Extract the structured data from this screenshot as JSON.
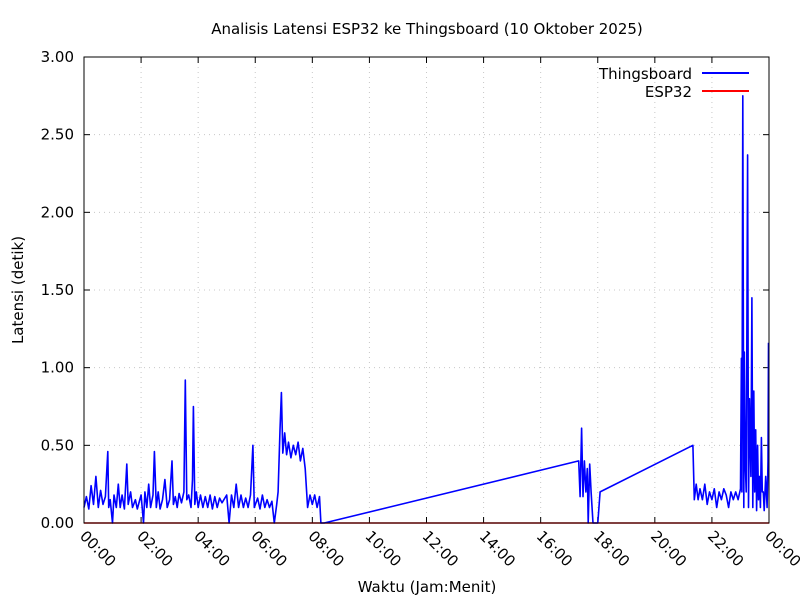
{
  "chart_data": {
    "type": "line",
    "title": "Analisis Latensi ESP32 ke Thingsboard (10 Oktober 2025)",
    "xlabel": "Waktu (Jam:Menit)",
    "ylabel": "Latensi (detik)",
    "xlim": [
      "00:00",
      "24:00"
    ],
    "ylim": [
      0,
      3
    ],
    "x_ticks": [
      "00:00",
      "02:00",
      "04:00",
      "06:00",
      "08:00",
      "10:00",
      "12:00",
      "14:00",
      "16:00",
      "18:00",
      "20:00",
      "22:00",
      "00:00"
    ],
    "y_ticks": [
      "0.00",
      "0.50",
      "1.00",
      "1.50",
      "2.00",
      "2.50",
      "3.00"
    ],
    "grid": true,
    "legend_position": "top-right",
    "series": [
      {
        "name": "Thingsboard",
        "color": "#0000ff",
        "points": [
          [
            "00:00",
            0.1
          ],
          [
            "00:05",
            0.17
          ],
          [
            "00:10",
            0.09
          ],
          [
            "00:15",
            0.24
          ],
          [
            "00:20",
            0.12
          ],
          [
            "00:25",
            0.3
          ],
          [
            "00:30",
            0.1
          ],
          [
            "00:35",
            0.21
          ],
          [
            "00:40",
            0.12
          ],
          [
            "00:45",
            0.17
          ],
          [
            "00:50",
            0.46
          ],
          [
            "00:52",
            0.1
          ],
          [
            "00:55",
            0.15
          ],
          [
            "01:00",
            0.0
          ],
          [
            "01:03",
            0.18
          ],
          [
            "01:08",
            0.1
          ],
          [
            "01:12",
            0.25
          ],
          [
            "01:16",
            0.1
          ],
          [
            "01:20",
            0.18
          ],
          [
            "01:25",
            0.09
          ],
          [
            "01:30",
            0.38
          ],
          [
            "01:33",
            0.12
          ],
          [
            "01:38",
            0.2
          ],
          [
            "01:42",
            0.1
          ],
          [
            "01:48",
            0.15
          ],
          [
            "01:52",
            0.09
          ],
          [
            "02:00",
            0.18
          ],
          [
            "02:05",
            0.0
          ],
          [
            "02:08",
            0.2
          ],
          [
            "02:12",
            0.1
          ],
          [
            "02:16",
            0.25
          ],
          [
            "02:20",
            0.1
          ],
          [
            "02:25",
            0.18
          ],
          [
            "02:28",
            0.46
          ],
          [
            "02:32",
            0.1
          ],
          [
            "02:36",
            0.2
          ],
          [
            "02:40",
            0.09
          ],
          [
            "02:45",
            0.15
          ],
          [
            "02:50",
            0.28
          ],
          [
            "02:55",
            0.1
          ],
          [
            "03:00",
            0.15
          ],
          [
            "03:05",
            0.4
          ],
          [
            "03:08",
            0.12
          ],
          [
            "03:12",
            0.17
          ],
          [
            "03:16",
            0.1
          ],
          [
            "03:20",
            0.19
          ],
          [
            "03:25",
            0.13
          ],
          [
            "03:30",
            0.2
          ],
          [
            "03:33",
            0.92
          ],
          [
            "03:36",
            0.15
          ],
          [
            "03:40",
            0.18
          ],
          [
            "03:45",
            0.1
          ],
          [
            "03:48",
            0.28
          ],
          [
            "03:50",
            0.75
          ],
          [
            "03:53",
            0.12
          ],
          [
            "03:56",
            0.2
          ],
          [
            "04:00",
            0.1
          ],
          [
            "04:05",
            0.18
          ],
          [
            "04:10",
            0.1
          ],
          [
            "04:15",
            0.17
          ],
          [
            "04:20",
            0.1
          ],
          [
            "04:25",
            0.18
          ],
          [
            "04:30",
            0.09
          ],
          [
            "04:35",
            0.17
          ],
          [
            "04:40",
            0.1
          ],
          [
            "04:45",
            0.16
          ],
          [
            "04:50",
            0.13
          ],
          [
            "05:00",
            0.18
          ],
          [
            "05:05",
            0.0
          ],
          [
            "05:10",
            0.18
          ],
          [
            "05:15",
            0.1
          ],
          [
            "05:20",
            0.25
          ],
          [
            "05:25",
            0.1
          ],
          [
            "05:30",
            0.18
          ],
          [
            "05:35",
            0.1
          ],
          [
            "05:40",
            0.16
          ],
          [
            "05:45",
            0.1
          ],
          [
            "05:50",
            0.18
          ],
          [
            "05:55",
            0.5
          ],
          [
            "05:58",
            0.1
          ],
          [
            "06:05",
            0.16
          ],
          [
            "06:10",
            0.09
          ],
          [
            "06:15",
            0.18
          ],
          [
            "06:20",
            0.1
          ],
          [
            "06:25",
            0.15
          ],
          [
            "06:30",
            0.1
          ],
          [
            "06:35",
            0.14
          ],
          [
            "06:40",
            0.0
          ],
          [
            "06:45",
            0.12
          ],
          [
            "06:48",
            0.2
          ],
          [
            "06:52",
            0.6
          ],
          [
            "06:55",
            0.84
          ],
          [
            "06:58",
            0.45
          ],
          [
            "07:02",
            0.58
          ],
          [
            "07:06",
            0.44
          ],
          [
            "07:10",
            0.52
          ],
          [
            "07:15",
            0.42
          ],
          [
            "07:20",
            0.5
          ],
          [
            "07:25",
            0.44
          ],
          [
            "07:30",
            0.52
          ],
          [
            "07:35",
            0.4
          ],
          [
            "07:40",
            0.48
          ],
          [
            "07:45",
            0.35
          ],
          [
            "07:50",
            0.1
          ],
          [
            "07:55",
            0.18
          ],
          [
            "08:00",
            0.12
          ],
          [
            "08:05",
            0.18
          ],
          [
            "08:10",
            0.1
          ],
          [
            "08:15",
            0.17
          ],
          [
            "08:18",
            0.0
          ],
          [
            "08:25",
            0.0
          ],
          [
            "17:20",
            0.4
          ],
          [
            "17:23",
            0.17
          ],
          [
            "17:26",
            0.61
          ],
          [
            "17:29",
            0.17
          ],
          [
            "17:32",
            0.4
          ],
          [
            "17:35",
            0.2
          ],
          [
            "17:38",
            0.35
          ],
          [
            "17:40",
            0.0
          ],
          [
            "17:43",
            0.38
          ],
          [
            "17:46",
            0.2
          ],
          [
            "17:50",
            0.0
          ],
          [
            "18:00",
            0.0
          ],
          [
            "18:05",
            0.2
          ],
          [
            "21:20",
            0.5
          ],
          [
            "21:23",
            0.15
          ],
          [
            "21:27",
            0.25
          ],
          [
            "21:31",
            0.15
          ],
          [
            "21:35",
            0.22
          ],
          [
            "21:40",
            0.15
          ],
          [
            "21:45",
            0.25
          ],
          [
            "21:50",
            0.12
          ],
          [
            "21:55",
            0.2
          ],
          [
            "22:00",
            0.15
          ],
          [
            "22:05",
            0.22
          ],
          [
            "22:10",
            0.1
          ],
          [
            "22:15",
            0.2
          ],
          [
            "22:20",
            0.15
          ],
          [
            "22:25",
            0.22
          ],
          [
            "22:30",
            0.18
          ],
          [
            "22:35",
            0.1
          ],
          [
            "22:40",
            0.2
          ],
          [
            "22:45",
            0.15
          ],
          [
            "22:50",
            0.2
          ],
          [
            "22:55",
            0.15
          ],
          [
            "23:00",
            0.22
          ],
          [
            "23:02",
            1.06
          ],
          [
            "23:03",
            0.2
          ],
          [
            "23:05",
            2.75
          ],
          [
            "23:07",
            0.1
          ],
          [
            "23:08",
            1.1
          ],
          [
            "23:10",
            0.4
          ],
          [
            "23:12",
            0.2
          ],
          [
            "23:15",
            2.37
          ],
          [
            "23:17",
            0.1
          ],
          [
            "23:19",
            0.8
          ],
          [
            "23:22",
            0.3
          ],
          [
            "23:24",
            1.45
          ],
          [
            "23:26",
            0.1
          ],
          [
            "23:28",
            0.85
          ],
          [
            "23:30",
            0.2
          ],
          [
            "23:32",
            0.6
          ],
          [
            "23:34",
            0.08
          ],
          [
            "23:36",
            0.5
          ],
          [
            "23:38",
            0.15
          ],
          [
            "23:40",
            0.3
          ],
          [
            "23:42",
            0.1
          ],
          [
            "23:44",
            0.55
          ],
          [
            "23:46",
            0.2
          ],
          [
            "23:48",
            0.2
          ],
          [
            "23:50",
            0.08
          ],
          [
            "23:53",
            0.3
          ],
          [
            "23:56",
            0.1
          ],
          [
            "23:58",
            0.4
          ],
          [
            "23:59",
            1.16
          ]
        ]
      },
      {
        "name": "ESP32",
        "color": "#ff0000",
        "points": [
          [
            "00:00",
            0.0
          ],
          [
            "24:00",
            0.0
          ]
        ]
      }
    ]
  }
}
